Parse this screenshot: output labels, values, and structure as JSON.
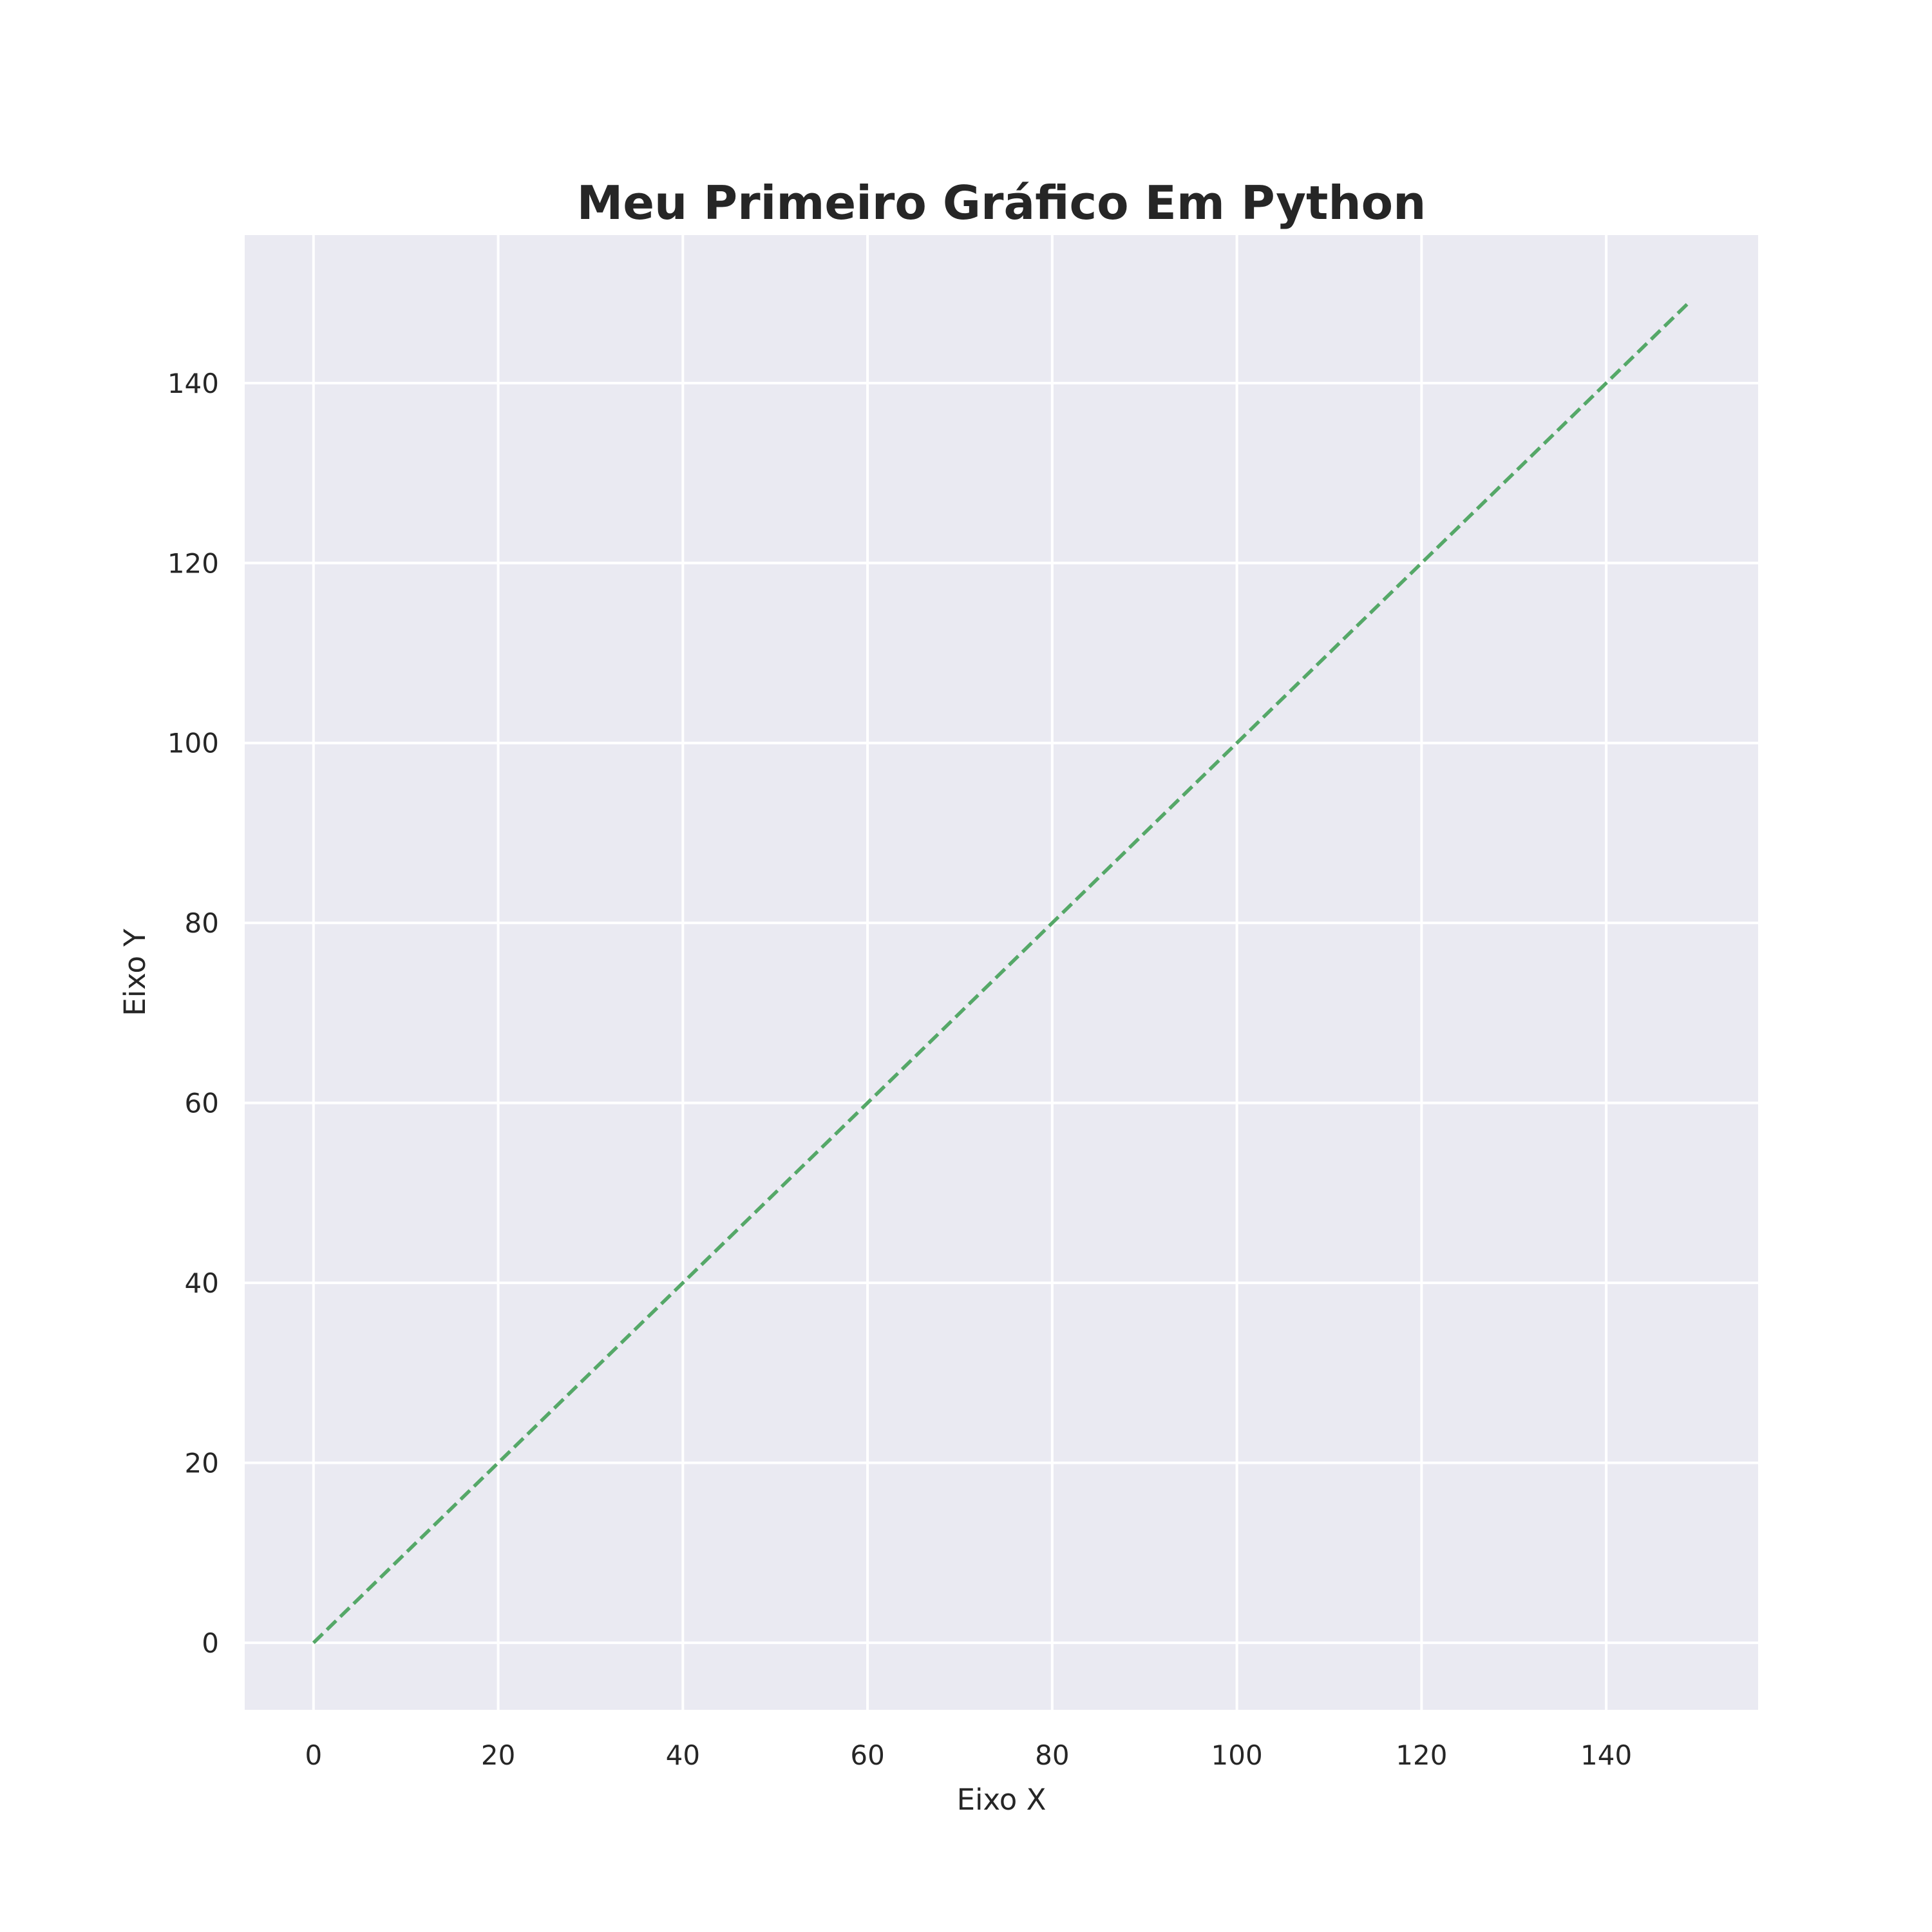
{
  "chart_data": {
    "type": "line",
    "title": "Meu Primeiro Gráfico Em Python",
    "xlabel": "Eixo X",
    "ylabel": "Eixo Y",
    "xlim": [
      -7.45,
      156.45
    ],
    "ylim": [
      -7.45,
      156.45
    ],
    "xticks": [
      0,
      20,
      40,
      60,
      80,
      100,
      120,
      140
    ],
    "yticks": [
      0,
      20,
      40,
      60,
      80,
      100,
      120,
      140
    ],
    "grid": true,
    "legend": "none",
    "series": [
      {
        "x": [
          0,
          149
        ],
        "y": [
          0,
          149
        ],
        "color": "#55a868",
        "linestyle": "dashed"
      }
    ],
    "background_color": "#eaeaf2",
    "grid_color": "#ffffff"
  }
}
